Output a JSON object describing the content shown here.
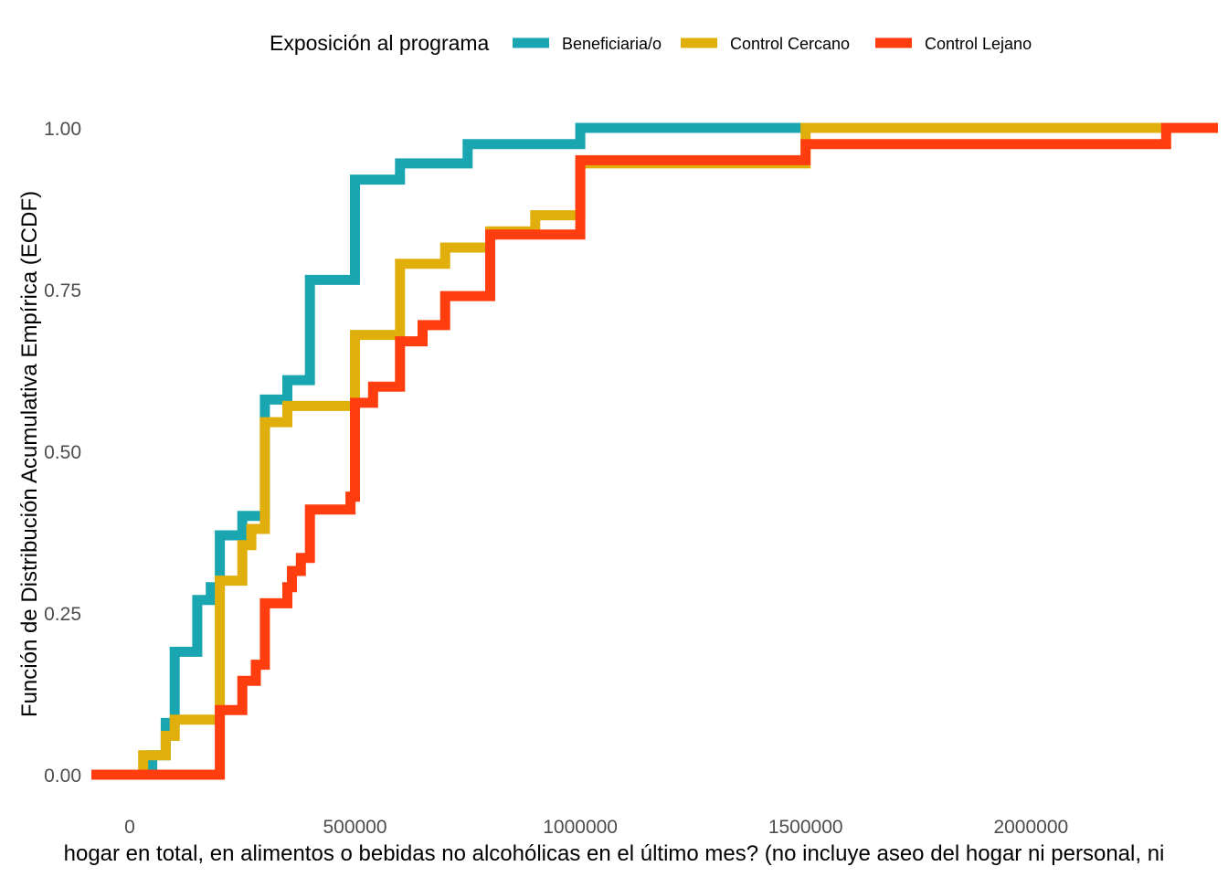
{
  "chart_data": {
    "type": "line",
    "subtype": "ecdf-step",
    "ylabel": "Función de Distribución Acumulativa Empírica (ECDF)",
    "xlabel": "hogar en total, en alimentos o bebidas no alcohólicas en el último mes? (no incluye aseo del hogar ni personal, ni",
    "legend": {
      "title": "Exposición al programa",
      "position": "top"
    },
    "xlim": [
      -85000,
      2415000
    ],
    "ylim": [
      -0.05,
      1.05
    ],
    "x_ticks": [
      0,
      500000,
      1000000,
      1500000,
      2000000
    ],
    "x_tick_labels": [
      "0",
      "500000",
      "1000000",
      "1500000",
      "2000000"
    ],
    "y_ticks": [
      0,
      0.25,
      0.5,
      0.75,
      1
    ],
    "y_tick_labels": [
      "0.00",
      "0.25",
      "0.50",
      "0.75",
      "1.00"
    ],
    "grid": false,
    "series": [
      {
        "name": "Beneficiaria/o",
        "color": "#1AA6B0",
        "steps": [
          [
            -85000,
            0
          ],
          [
            50000,
            0.03
          ],
          [
            80000,
            0.08
          ],
          [
            100000,
            0.19
          ],
          [
            150000,
            0.27
          ],
          [
            180000,
            0.29
          ],
          [
            200000,
            0.37
          ],
          [
            250000,
            0.4
          ],
          [
            300000,
            0.58
          ],
          [
            350000,
            0.61
          ],
          [
            400000,
            0.765
          ],
          [
            500000,
            0.92
          ],
          [
            600000,
            0.945
          ],
          [
            750000,
            0.975
          ],
          [
            1000000,
            1.0
          ],
          [
            2415000,
            1.0
          ]
        ]
      },
      {
        "name": "Control Cercano",
        "color": "#E0AF0B",
        "steps": [
          [
            -85000,
            0
          ],
          [
            30000,
            0.03
          ],
          [
            70000,
            0.03
          ],
          [
            80000,
            0.06
          ],
          [
            100000,
            0.085
          ],
          [
            200000,
            0.3
          ],
          [
            250000,
            0.355
          ],
          [
            270000,
            0.38
          ],
          [
            300000,
            0.545
          ],
          [
            350000,
            0.57
          ],
          [
            500000,
            0.68
          ],
          [
            600000,
            0.79
          ],
          [
            700000,
            0.815
          ],
          [
            800000,
            0.84
          ],
          [
            900000,
            0.865
          ],
          [
            1000000,
            0.945
          ],
          [
            1500000,
            1.0
          ],
          [
            2415000,
            1.0
          ]
        ]
      },
      {
        "name": "Control Lejano",
        "color": "#FF3D0E",
        "steps": [
          [
            -85000,
            0
          ],
          [
            200000,
            0.1
          ],
          [
            250000,
            0.145
          ],
          [
            280000,
            0.17
          ],
          [
            300000,
            0.265
          ],
          [
            350000,
            0.29
          ],
          [
            360000,
            0.315
          ],
          [
            380000,
            0.335
          ],
          [
            400000,
            0.41
          ],
          [
            490000,
            0.43
          ],
          [
            500000,
            0.575
          ],
          [
            540000,
            0.6
          ],
          [
            600000,
            0.67
          ],
          [
            650000,
            0.695
          ],
          [
            700000,
            0.74
          ],
          [
            800000,
            0.835
          ],
          [
            1000000,
            0.95
          ],
          [
            1500000,
            0.975
          ],
          [
            2300000,
            1.0
          ],
          [
            2415000,
            1.0
          ]
        ]
      }
    ]
  }
}
